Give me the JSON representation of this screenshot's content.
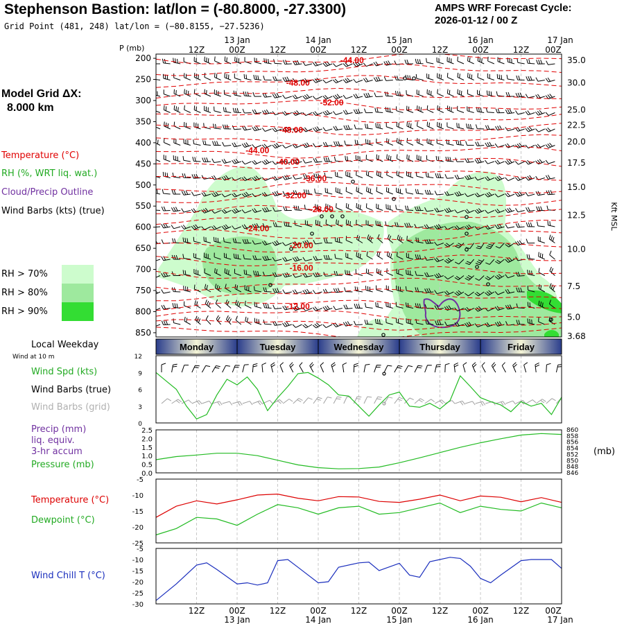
{
  "header": {
    "title": "Stephenson Bastion:  lat/lon = (-80.8000, -27.3300)",
    "subtitle": "Grid Point (481, 248) lat/lon = (−80.8155, −27.5236)",
    "cycle_line1": "AMPS WRF Forecast Cycle:",
    "cycle_line2": "2026-01-12 / 00  Z"
  },
  "model": {
    "line1": "Model Grid ΔX:",
    "line2": "8.000 km"
  },
  "legend": {
    "temperature": "Temperature (°C)",
    "rh": "RH (%, WRT liq. wat.)",
    "cloud": "Cloud/Precip Outline",
    "wind": "Wind Barbs (kts) (true)",
    "rh70": "RH > 70%",
    "rh80": "RH > 80%",
    "rh90": "RH > 90%",
    "colors": {
      "rh70": "#cdfccd",
      "rh80": "#9ee99e",
      "rh90": "#33dd33",
      "temp": "#e00000",
      "cloud": "#7030a0"
    }
  },
  "time_axis": {
    "top_hour_ticks": [
      "12Z",
      "00Z",
      "12Z",
      "00Z",
      "12Z",
      "00Z",
      "12Z",
      "00Z",
      "12Z",
      "00Z"
    ],
    "date_labels": [
      "13 Jan",
      "14 Jan",
      "15 Jan",
      "16 Jan",
      "17 Jan"
    ],
    "weekdays": [
      "Monday",
      "Tuesday",
      "Wednesday",
      "Thursday",
      "Friday"
    ]
  },
  "panels": {
    "weekday_label": "Local Weekday",
    "wind_at_10m": "Wind at 10 m",
    "wind_spd": "Wind Spd (kts)",
    "wind_barbs_true": "Wind Barbs (true)",
    "wind_barbs_grid": "Wind Barbs (grid)",
    "precip": "Precip (mm)",
    "liq_equiv": "liq. equiv.",
    "accum": "3-hr accum",
    "pressure": "Pressure (mb)",
    "pressure_unit": "(mb)",
    "temperature": "Temperature (°C)",
    "dewpoint": "Dewpoint (°C)",
    "windchill": "Wind Chill T (°C)"
  },
  "chart_data": [
    {
      "type": "contour",
      "id": "cross_section",
      "ylabel": "P (mb)",
      "y_ticks": [
        200,
        250,
        300,
        350,
        400,
        450,
        500,
        550,
        600,
        650,
        700,
        750,
        800,
        850
      ],
      "ylim": [
        190,
        860
      ],
      "right_axis_label": "Kft MSL",
      "right_ticks": [
        {
          "p": 205,
          "label": "35.0"
        },
        {
          "p": 258,
          "label": "30.0"
        },
        {
          "p": 322,
          "label": "25.0"
        },
        {
          "p": 358,
          "label": "22.5"
        },
        {
          "p": 398,
          "label": "20.0"
        },
        {
          "p": 448,
          "label": "17.5"
        },
        {
          "p": 505,
          "label": "15.0"
        },
        {
          "p": 572,
          "label": "12.5"
        },
        {
          "p": 652,
          "label": "10.0"
        },
        {
          "p": 740,
          "label": "7.5"
        },
        {
          "p": 813,
          "label": "5.0"
        },
        {
          "p": 858,
          "label": "3.68"
        }
      ],
      "temperature_contour_labels": [
        {
          "label": "-44.00",
          "t": 58,
          "p": 205
        },
        {
          "label": "-48.00",
          "t": 42,
          "p": 258
        },
        {
          "label": "-52.00",
          "t": 52,
          "p": 305
        },
        {
          "label": "-48.00",
          "t": 40,
          "p": 370
        },
        {
          "label": "-44.00",
          "t": 30,
          "p": 418
        },
        {
          "label": "-40.00",
          "t": 39,
          "p": 445
        },
        {
          "label": "-36.00",
          "t": 47,
          "p": 485
        },
        {
          "label": "-32.00",
          "t": 41,
          "p": 525
        },
        {
          "label": "-28.00",
          "t": 49,
          "p": 558
        },
        {
          "label": "-24.00",
          "t": 30,
          "p": 603
        },
        {
          "label": "-20.00",
          "t": 43,
          "p": 643
        },
        {
          "label": "-16.00",
          "t": 43,
          "p": 697
        },
        {
          "label": "-12.00",
          "t": 42,
          "p": 788
        }
      ]
    },
    {
      "type": "line",
      "id": "wind_speed",
      "ylabel": "Wind Spd (kts)",
      "ylim": [
        0,
        12
      ],
      "y_ticks": [
        0,
        3,
        6,
        9,
        12
      ],
      "x": [
        0,
        3,
        6,
        9,
        12,
        15,
        18,
        21,
        24,
        27,
        30,
        33,
        36,
        39,
        42,
        45,
        48,
        51,
        54,
        57,
        60,
        63,
        66,
        69,
        72,
        75,
        78,
        81,
        84,
        87,
        90,
        93,
        96,
        99,
        102,
        105,
        108,
        111,
        114,
        117,
        120
      ],
      "values": [
        9,
        7.5,
        6,
        3,
        0.7,
        1.5,
        5,
        7.8,
        6.8,
        8.2,
        6,
        2.2,
        4.5,
        6.5,
        8.8,
        9,
        8,
        6.8,
        5,
        4.8,
        3,
        1.2,
        3.2,
        5,
        5.5,
        3,
        2.8,
        3.5,
        2.5,
        4,
        8.4,
        6.5,
        4.5,
        3.8,
        3.2,
        2,
        3.8,
        3,
        3.5,
        1.5,
        4.6
      ]
    },
    {
      "type": "line",
      "id": "pressure",
      "ylabel": "Pressure (mb)",
      "ylim": [
        846,
        860
      ],
      "y_ticks_left": [
        "0.0",
        "0.5",
        "1.0",
        "1.5",
        "2.0",
        "2.5"
      ],
      "y_ticks_right": [
        "846",
        "848",
        "850",
        "852",
        "854",
        "856",
        "858",
        "860"
      ],
      "x": [
        0,
        6,
        12,
        18,
        24,
        30,
        36,
        42,
        48,
        54,
        60,
        66,
        72,
        78,
        84,
        90,
        96,
        102,
        108,
        114,
        120
      ],
      "values": [
        850.3,
        851.3,
        851.8,
        852.4,
        852.4,
        851.6,
        850.1,
        848.6,
        847.7,
        847.3,
        847.4,
        847.9,
        849.3,
        850.9,
        852.6,
        854.3,
        855.8,
        857.1,
        858.3,
        858.8,
        858.5
      ]
    },
    {
      "type": "line",
      "id": "temperature_dewpoint",
      "ylim": [
        -25,
        -5
      ],
      "y_ticks": [
        -25,
        -20,
        -15,
        -10,
        -5
      ],
      "x": [
        0,
        6,
        12,
        18,
        24,
        30,
        36,
        42,
        48,
        54,
        60,
        66,
        72,
        78,
        84,
        90,
        96,
        102,
        108,
        114,
        120
      ],
      "series": [
        {
          "name": "Temperature",
          "values": [
            -17,
            -13.5,
            -11.8,
            -12.8,
            -11.5,
            -10,
            -9.7,
            -11,
            -11.8,
            -10.5,
            -10.6,
            -12,
            -12.3,
            -11.3,
            -10,
            -11.8,
            -10.3,
            -10.7,
            -12.1,
            -10.8,
            -12.3
          ]
        },
        {
          "name": "Dewpoint",
          "values": [
            -22.5,
            -20.5,
            -17,
            -17.5,
            -19.5,
            -16,
            -13,
            -14,
            -16,
            -14,
            -13.5,
            -16,
            -15.5,
            -14,
            -12.5,
            -15.5,
            -13.5,
            -14.5,
            -15,
            -12.5,
            -14
          ]
        }
      ]
    },
    {
      "type": "line",
      "id": "windchill",
      "ylabel": "Wind Chill T (°C)",
      "ylim": [
        -30,
        -5
      ],
      "y_ticks": [
        -30,
        -25,
        -20,
        -15,
        -10,
        -5
      ],
      "x": [
        0,
        6,
        12,
        15,
        18,
        24,
        27,
        30,
        33,
        36,
        39,
        42,
        48,
        51,
        54,
        60,
        63,
        66,
        72,
        75,
        78,
        81,
        84,
        87,
        90,
        93,
        96,
        99,
        102,
        108,
        111,
        114,
        117,
        120
      ],
      "values": [
        -28.5,
        -21,
        -12.5,
        -11.5,
        -14.5,
        -21,
        -20.5,
        -21.5,
        -20.5,
        -10.5,
        -10,
        -13.5,
        -20.5,
        -20,
        -13.5,
        -11.5,
        -11.2,
        -15,
        -11.7,
        -17,
        -18,
        -11,
        -10,
        -9,
        -9.5,
        -13,
        -18.5,
        -20.5,
        -17,
        -10.5,
        -10,
        -10,
        -10,
        -14
      ]
    }
  ]
}
